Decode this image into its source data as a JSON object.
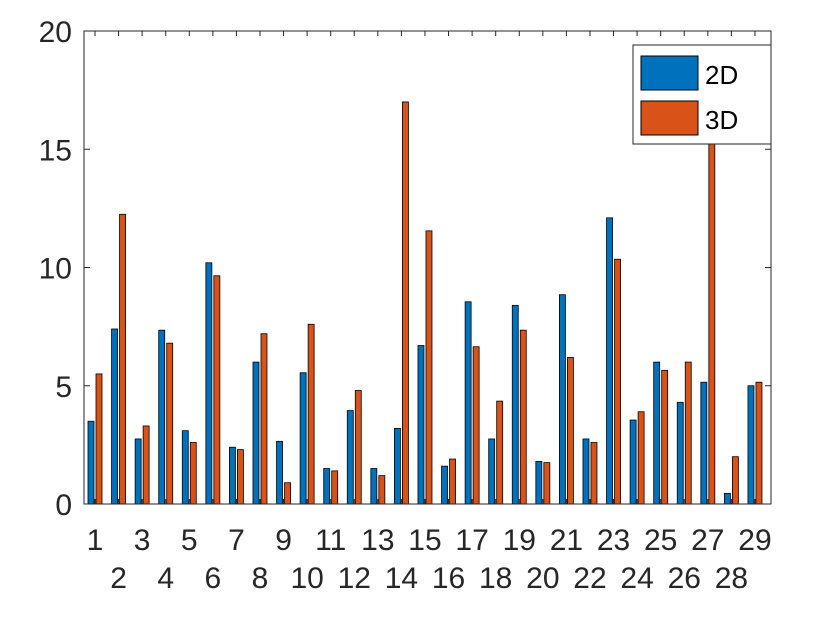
{
  "chart_data": {
    "type": "bar",
    "categories": [
      "1",
      "2",
      "3",
      "4",
      "5",
      "6",
      "7",
      "8",
      "9",
      "10",
      "11",
      "12",
      "13",
      "14",
      "15",
      "16",
      "17",
      "18",
      "19",
      "20",
      "21",
      "22",
      "23",
      "24",
      "25",
      "26",
      "27",
      "28",
      "29"
    ],
    "series": [
      {
        "name": "2D",
        "color": "#0072BD",
        "values": [
          3.5,
          7.4,
          2.75,
          7.35,
          3.1,
          10.2,
          2.4,
          6.0,
          2.65,
          5.55,
          1.5,
          3.95,
          1.5,
          3.2,
          6.7,
          1.6,
          8.55,
          2.75,
          8.4,
          1.8,
          8.85,
          2.75,
          12.1,
          3.55,
          6.0,
          4.3,
          5.15,
          0.45,
          5.0
        ]
      },
      {
        "name": "3D",
        "color": "#D95319",
        "values": [
          5.5,
          12.25,
          3.3,
          6.8,
          2.6,
          9.65,
          2.3,
          7.2,
          0.9,
          7.6,
          1.4,
          4.8,
          1.2,
          17.0,
          11.55,
          1.9,
          6.65,
          4.35,
          7.35,
          1.75,
          6.2,
          2.6,
          10.35,
          3.9,
          5.65,
          6.0,
          15.5,
          2.0,
          5.15
        ]
      }
    ],
    "ylim": [
      0,
      20
    ],
    "yticks": [
      "0",
      "5",
      "10",
      "15",
      "20"
    ],
    "xlabel": "",
    "ylabel": "",
    "title": "",
    "grid": false,
    "legend_position": "top-right",
    "xtick_style": "alternating two rows (odd top, even bottom)"
  }
}
